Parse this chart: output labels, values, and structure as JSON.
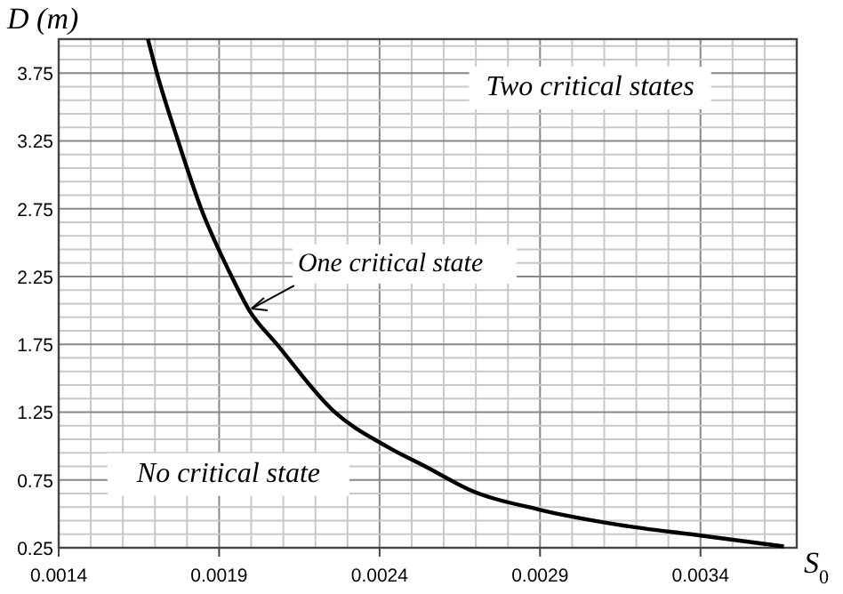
{
  "chart_data": {
    "type": "line",
    "xlabel": "S$_{0}$",
    "ylabel": "D (m)",
    "x": [
      0.001678,
      0.001706,
      0.001772,
      0.001844,
      0.001939,
      0.001994,
      0.00208,
      0.00226,
      0.00242,
      0.00255,
      0.002678,
      0.0029,
      0.003144,
      0.0034,
      0.00366
    ],
    "series": [
      {
        "color": "#000000",
        "values": [
          4.0,
          3.75,
          3.25,
          2.75,
          2.25,
          2.0,
          1.75,
          1.25,
          1.0,
          0.84,
          0.68,
          0.53,
          0.42,
          0.34,
          0.26
        ]
      }
    ],
    "xlim": [
      0.0014,
      0.0037
    ],
    "ylim": [
      0.25,
      4.0
    ],
    "xticks": [
      0.0014,
      {
        "value": 0.0015,
        "label": null
      },
      {
        "value": 0.0016,
        "label": null
      },
      {
        "value": 0.0017,
        "label": null
      },
      {
        "value": 0.0018,
        "label": null
      },
      0.0019,
      {
        "value": 0.002,
        "label": null
      },
      {
        "value": 0.0021,
        "label": null
      },
      {
        "value": 0.0022,
        "label": null
      },
      {
        "value": 0.0023,
        "label": null
      },
      0.0024,
      {
        "value": 0.0025,
        "label": null
      },
      {
        "value": 0.0026,
        "label": null
      },
      {
        "value": 0.0027,
        "label": null
      },
      {
        "value": 0.0028,
        "label": null
      },
      0.0029,
      {
        "value": 0.003,
        "label": null
      },
      {
        "value": 0.0031,
        "label": null
      },
      {
        "value": 0.0032,
        "label": null
      },
      {
        "value": 0.0033,
        "label": null
      },
      0.0034,
      {
        "value": 0.0035,
        "label": null
      },
      {
        "value": 0.0036,
        "label": null
      },
      {
        "value": 0.0037,
        "label": null
      }
    ],
    "yticks": [
      0.25,
      {
        "value": 0.35,
        "label": null
      },
      {
        "value": 0.45,
        "label": null
      },
      {
        "value": 0.55,
        "label": null
      },
      {
        "value": 0.65,
        "label": null
      },
      0.75,
      {
        "value": 0.85,
        "label": null
      },
      {
        "value": 0.95,
        "label": null
      },
      {
        "value": 1.05,
        "label": null
      },
      {
        "value": 1.15,
        "label": null
      },
      1.25,
      {
        "value": 1.35,
        "label": null
      },
      {
        "value": 1.45,
        "label": null
      },
      {
        "value": 1.55,
        "label": null
      },
      {
        "value": 1.65,
        "label": null
      },
      1.75,
      {
        "value": 1.85,
        "label": null
      },
      {
        "value": 1.95,
        "label": null
      },
      {
        "value": 2.05,
        "label": null
      },
      {
        "value": 2.15,
        "label": null
      },
      2.25,
      {
        "value": 2.35,
        "label": null
      },
      {
        "value": 2.45,
        "label": null
      },
      {
        "value": 2.55,
        "label": null
      },
      {
        "value": 2.65,
        "label": null
      },
      2.75,
      {
        "value": 2.85,
        "label": null
      },
      {
        "value": 2.95,
        "label": null
      },
      {
        "value": 3.05,
        "label": null
      },
      {
        "value": 3.15,
        "label": null
      },
      3.25,
      {
        "value": 3.35,
        "label": null
      },
      {
        "value": 3.45,
        "label": null
      },
      {
        "value": 3.55,
        "label": null
      },
      {
        "value": 3.65,
        "label": null
      },
      3.75,
      {
        "value": 3.85,
        "label": null
      },
      {
        "value": 3.95,
        "label": null
      }
    ],
    "grid": true,
    "marker": "none",
    "line_style": "solid",
    "annotations": [
      {
        "text": "One critical state",
        "x": 0.00199,
        "y": 2.0
      },
      "Two critical states",
      "No critical state"
    ]
  }
}
